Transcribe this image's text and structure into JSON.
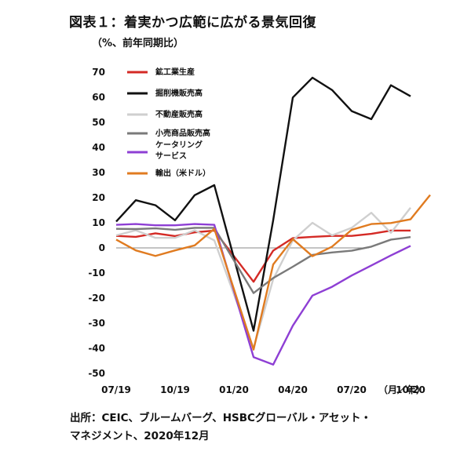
{
  "chart_data": {
    "type": "line",
    "title": "図表１：着実かつ広範に広がる景気回復",
    "ylabel": "（%、前年同期比）",
    "xunit": "（月／年）",
    "source_lines": [
      "出所：CEIC、ブルームバーグ、HSBCグローバル・アセット・",
      "マネジメント、2020年12月"
    ],
    "ylim": [
      -50,
      70
    ],
    "yticks": [
      70,
      60,
      50,
      40,
      30,
      20,
      10,
      0,
      -10,
      -20,
      -30,
      -40,
      -50
    ],
    "x_months": [
      "07/19",
      "08/19",
      "09/19",
      "10/19",
      "11/19",
      "12/19",
      "01/20",
      "02/20",
      "03/20",
      "04/20",
      "05/20",
      "06/20",
      "07/20",
      "08/20",
      "09/20",
      "10/20",
      "11/20"
    ],
    "xticks": [
      {
        "label": "07/19",
        "idx": 0
      },
      {
        "label": "10/19",
        "idx": 3
      },
      {
        "label": "01/20",
        "idx": 6
      },
      {
        "label": "04/20",
        "idx": 9
      },
      {
        "label": "07/20",
        "idx": 12
      },
      {
        "label": "10/20",
        "idx": 15
      }
    ],
    "series": [
      {
        "name": "鉱工業生産",
        "color": "#d42a25",
        "values": [
          4.8,
          4.4,
          5.8,
          4.7,
          6.2,
          6.9,
          null,
          -13.5,
          -1.1,
          3.9,
          4.4,
          4.8,
          4.8,
          5.6,
          6.9,
          6.9,
          null
        ]
      },
      {
        "name": "掘削機販売高",
        "color": "#111111",
        "values": [
          10.5,
          19,
          17,
          11,
          21,
          25,
          null,
          -33,
          11,
          59.9,
          67.8,
          62.9,
          54.5,
          51.3,
          64.8,
          60.4,
          null
        ]
      },
      {
        "name": "不動産販売高",
        "color": "#cfcfcf",
        "values": [
          5,
          7,
          4,
          4,
          7,
          3,
          null,
          -40,
          -12.5,
          3,
          10,
          5,
          8,
          14,
          6,
          16,
          null
        ]
      },
      {
        "name": "小売商品販売高",
        "color": "#7a7a7a",
        "values": [
          7.6,
          7.5,
          7.8,
          7.2,
          8,
          8,
          null,
          -18,
          -12,
          -7.5,
          -2.8,
          -1.8,
          -1.1,
          0.5,
          3.3,
          4.3,
          null
        ]
      },
      {
        "name": "ケータリングサービス",
        "color": "#8e3fd4",
        "values": [
          9.2,
          9.5,
          9,
          9,
          9.5,
          9.2,
          null,
          -43.5,
          -46.5,
          -31,
          -19,
          -15.5,
          -11,
          -7,
          -3,
          0.8,
          null
        ]
      },
      {
        "name": "輸出（米ドル）",
        "color": "#e07b20",
        "values": [
          3.3,
          -1,
          -3.2,
          -1,
          1,
          7.6,
          null,
          -40.5,
          -6.6,
          3.5,
          -3.3,
          0.5,
          7.2,
          9.5,
          9.9,
          11.4,
          21.1
        ]
      }
    ],
    "legend": [
      {
        "name": "鉱工業生産",
        "color": "#d42a25"
      },
      {
        "name": "掘削機販売高",
        "color": "#111111"
      },
      {
        "name": "不動産販売高",
        "color": "#cfcfcf"
      },
      {
        "name": "小売商品販売高",
        "color": "#7a7a7a"
      },
      {
        "name": "ケータリング",
        "name2": "サービス",
        "color": "#8e3fd4"
      },
      {
        "name": "輸出（米ドル）",
        "color": "#e07b20"
      }
    ]
  }
}
